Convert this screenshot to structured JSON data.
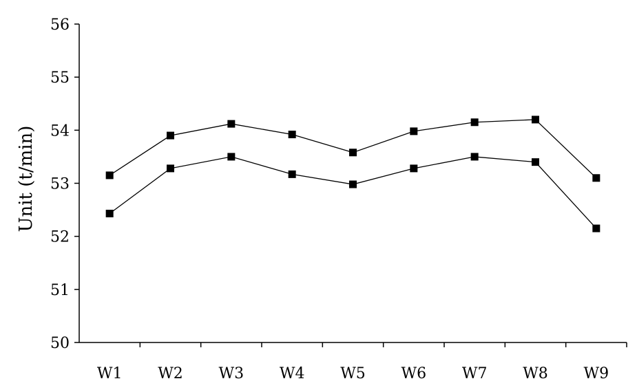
{
  "chart_data": {
    "type": "line",
    "title": "",
    "xlabel": "",
    "ylabel": "Unit (t/min)",
    "categories": [
      "W1",
      "W2",
      "W3",
      "W4",
      "W5",
      "W6",
      "W7",
      "W8",
      "W9"
    ],
    "ylim": [
      50,
      56
    ],
    "yticks": [
      "50",
      "51",
      "52",
      "53",
      "54",
      "55",
      "56"
    ],
    "grid": false,
    "legend": "none",
    "series": [
      {
        "values": [
          53.15,
          53.9,
          54.12,
          53.92,
          53.58,
          53.98,
          54.15,
          54.2,
          53.1
        ]
      },
      {
        "values": [
          52.43,
          53.28,
          53.5,
          53.17,
          52.98,
          53.28,
          53.5,
          53.4,
          52.15
        ]
      }
    ],
    "colors": {
      "line": "#000000",
      "marker": "#000000",
      "axis": "#000000"
    }
  }
}
